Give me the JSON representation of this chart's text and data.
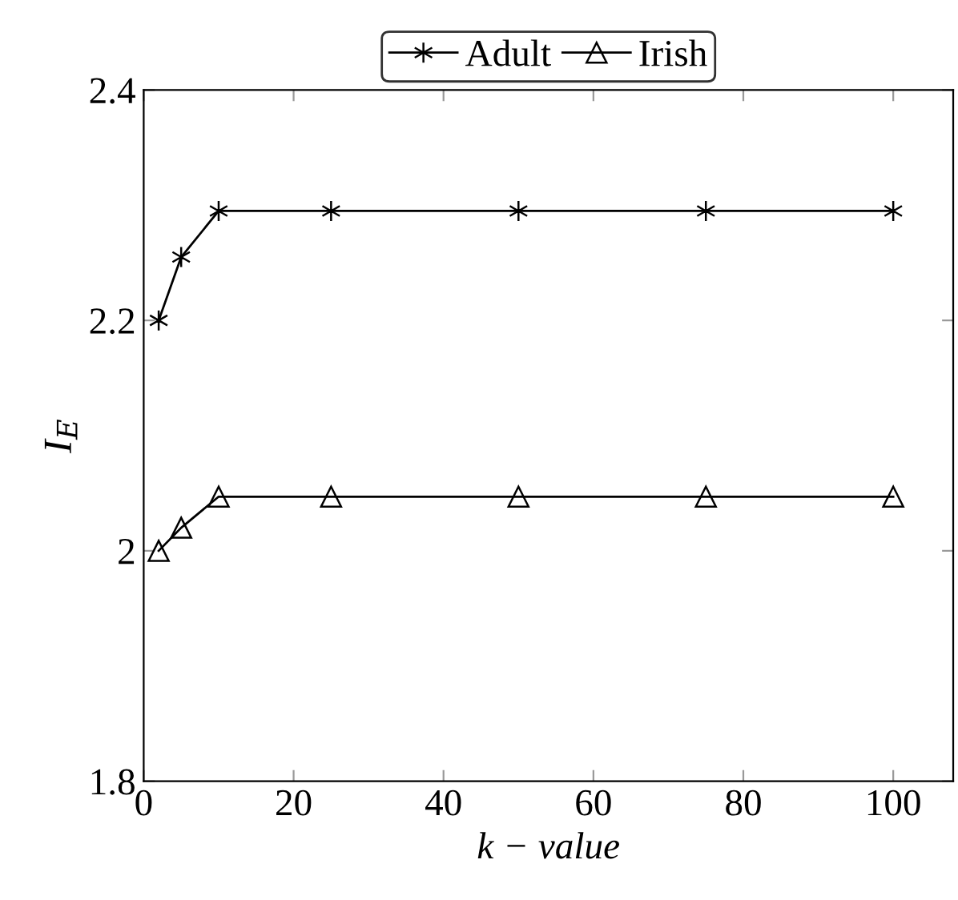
{
  "chart_data": {
    "type": "line",
    "xlabel": "k − value",
    "ylabel": "I$_{E}$",
    "x": [
      2,
      5,
      10,
      25,
      50,
      75,
      100
    ],
    "series": [
      {
        "name": "Adult",
        "color": "#000000",
        "marker": "cross",
        "values": [
          2.2,
          2.255,
          2.295,
          2.295,
          2.295,
          2.295,
          2.295
        ]
      },
      {
        "name": "Irish",
        "color": "#000000",
        "marker": "triangle",
        "values": [
          2.0,
          2.02,
          2.047,
          2.047,
          2.047,
          2.047,
          2.047
        ]
      }
    ],
    "xlim": [
      0,
      108
    ],
    "ylim": [
      1.8,
      2.4
    ],
    "xticks": [
      0,
      20,
      40,
      60,
      80,
      100
    ],
    "yticks": [
      1.8,
      2.2,
      2.4,
      2
    ],
    "grid": false,
    "legend": "top",
    "line_style": "solid"
  }
}
